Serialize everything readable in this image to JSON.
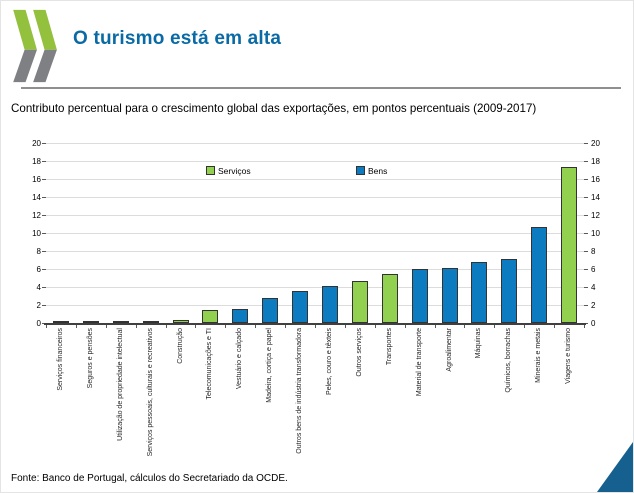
{
  "header": {
    "title": "O turismo está em alta"
  },
  "subtitle": "Contributo percentual para o crescimento global das exportações, em pontos percentuais (2009-2017)",
  "footer": {
    "source": "Fonte: Banco de Portugal, cálculos do Secretariado da OCDE."
  },
  "colors": {
    "title_blue": "#0a6aa5",
    "servicos_green": "#92d050",
    "bens_blue": "#0c7bc0",
    "logo_green": "#94c13d",
    "logo_gray": "#7e8083",
    "corner_triangle_blue": "#15608f"
  },
  "chart_data": {
    "type": "bar",
    "title": "Contributo percentual para o crescimento global das exportações, em pontos percentuais (2009-2017)",
    "xlabel": "",
    "ylabel": "",
    "ylim": [
      0,
      20
    ],
    "ytick_step": 2,
    "grid": true,
    "dual_y_axis": true,
    "legend_position": "top-inside",
    "series": [
      {
        "name": "Serviços",
        "color": "#92d050"
      },
      {
        "name": "Bens",
        "color": "#0c7bc0"
      }
    ],
    "points": [
      {
        "category": "Serviços financeiros",
        "series": "Serviços",
        "value": 0.1
      },
      {
        "category": "Seguros e pensões",
        "series": "Serviços",
        "value": 0.1
      },
      {
        "category": "Utilização de propriedade intelectual",
        "series": "Serviços",
        "value": 0.1
      },
      {
        "category": "Serviços pessoais, culturais e recreativos",
        "series": "Serviços",
        "value": 0.1
      },
      {
        "category": "Construção",
        "series": "Serviços",
        "value": 0.3
      },
      {
        "category": "Telecomunicações e TI",
        "series": "Serviços",
        "value": 1.5
      },
      {
        "category": "Vestuário e calçado",
        "series": "Bens",
        "value": 1.6
      },
      {
        "category": "Madeira, cortiça e papel",
        "series": "Bens",
        "value": 2.8
      },
      {
        "category": "Outros bens de indústria transformadora",
        "series": "Bens",
        "value": 3.6
      },
      {
        "category": "Peles, couro e têxteis",
        "series": "Bens",
        "value": 4.1
      },
      {
        "category": "Outros serviços",
        "series": "Serviços",
        "value": 4.7
      },
      {
        "category": "Transportes",
        "series": "Serviços",
        "value": 5.4
      },
      {
        "category": "Material de transporte",
        "series": "Bens",
        "value": 6.0
      },
      {
        "category": "Agroalimentar",
        "series": "Bens",
        "value": 6.1
      },
      {
        "category": "Máquinas",
        "series": "Bens",
        "value": 6.8
      },
      {
        "category": "Químicos, borrachas",
        "series": "Bens",
        "value": 7.1
      },
      {
        "category": "Minerais e metais",
        "series": "Bens",
        "value": 10.7
      },
      {
        "category": "Viagens e turismo",
        "series": "Serviços",
        "value": 17.3
      }
    ]
  }
}
